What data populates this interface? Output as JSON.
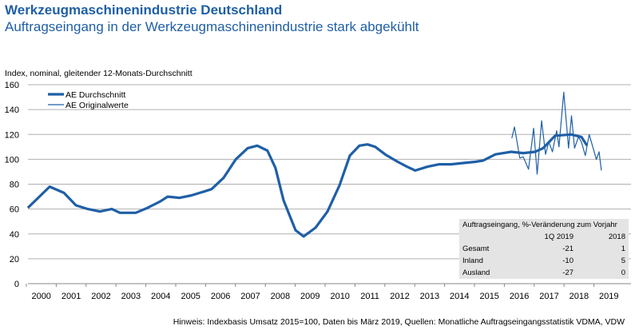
{
  "header": {
    "title": "Werkzeugmaschinenindustrie Deutschland",
    "subtitle": "Auftragseingang in der Werkzeugmaschinenindustrie stark abgekühlt"
  },
  "footnote": "Hinweis: Indexbasis Umsatz 2015=100, Daten bis März 2019, Quellen: Monatliche Auftragseingangsstatistik VDMA, VDW",
  "chart_data": {
    "type": "line",
    "ylabel": "Index, nominal, gleitender 12-Monats-Durchschnitt",
    "ylim": [
      0,
      160
    ],
    "yticks": [
      "0",
      "20",
      "40",
      "60",
      "80",
      "100",
      "120",
      "140",
      "160"
    ],
    "xticks": [
      "2000",
      "2001",
      "2002",
      "2003",
      "2004",
      "2005",
      "2006",
      "2007",
      "2008",
      "2009",
      "2010",
      "2011",
      "2012",
      "2013",
      "2014",
      "2015",
      "2016",
      "2017",
      "2018",
      "2019"
    ],
    "grid": true,
    "legend_position": "top-left",
    "colors": {
      "line": "#1f5fa6",
      "title": "#1f5fa6",
      "grid": "#b0b0b0",
      "table_bg": "#e4e4e4"
    },
    "series": [
      {
        "name": "AE Durchschnitt",
        "style": "thick",
        "x": [
          2000.05,
          2000.78,
          2001.26,
          2001.66,
          2002.06,
          2002.46,
          2002.86,
          2003.13,
          2003.4,
          2003.66,
          2004.06,
          2004.47,
          2004.73,
          2005.13,
          2005.53,
          2005.94,
          2006.2,
          2006.6,
          2007.01,
          2007.41,
          2007.73,
          2008.07,
          2008.34,
          2008.61,
          2009.01,
          2009.28,
          2009.68,
          2010.08,
          2010.48,
          2010.83,
          2011.15,
          2011.42,
          2011.68,
          2012.01,
          2012.43,
          2012.75,
          2013.02,
          2013.42,
          2013.82,
          2014.22,
          2014.63,
          2015.03,
          2015.29,
          2015.7,
          2016.23,
          2016.63,
          2017.03,
          2017.3,
          2017.7,
          2018.24,
          2018.58,
          2018.77
        ],
        "y": [
          61,
          78,
          73,
          63,
          60,
          58,
          60,
          57,
          57,
          57,
          61,
          66,
          70,
          69,
          71,
          74,
          76,
          85,
          100,
          109,
          111,
          107,
          93,
          67,
          43,
          38,
          45,
          58,
          79,
          103,
          111,
          112,
          110,
          104,
          98,
          94,
          91,
          94,
          96,
          96,
          97,
          98,
          99,
          104,
          106,
          105,
          106,
          109,
          119,
          120,
          118,
          111
        ]
      },
      {
        "name": "AE Originalwerte",
        "style": "thin",
        "x": [
          2016.25,
          2016.34,
          2016.52,
          2016.63,
          2016.81,
          2016.98,
          2017.1,
          2017.25,
          2017.38,
          2017.49,
          2017.61,
          2017.75,
          2017.83,
          2017.99,
          2018.15,
          2018.25,
          2018.35,
          2018.48,
          2018.58,
          2018.71,
          2018.84,
          2018.95,
          2019.08,
          2019.17,
          2019.25
        ],
        "y": [
          117,
          126,
          101,
          102,
          92,
          125,
          88,
          131,
          104,
          114,
          106,
          123,
          110,
          154,
          109,
          135,
          109,
          118,
          114,
          103,
          120,
          111,
          100,
          106,
          91
        ]
      }
    ],
    "table": {
      "title": "Auftragseingang, %-Veränderung zum Vorjahr",
      "columns": [
        "",
        "1Q 2019",
        "2018"
      ],
      "rows": [
        [
          "Gesamt",
          "-21",
          "1"
        ],
        [
          "Inland",
          "-10",
          "5"
        ],
        [
          "Ausland",
          "-27",
          "0"
        ]
      ]
    }
  }
}
